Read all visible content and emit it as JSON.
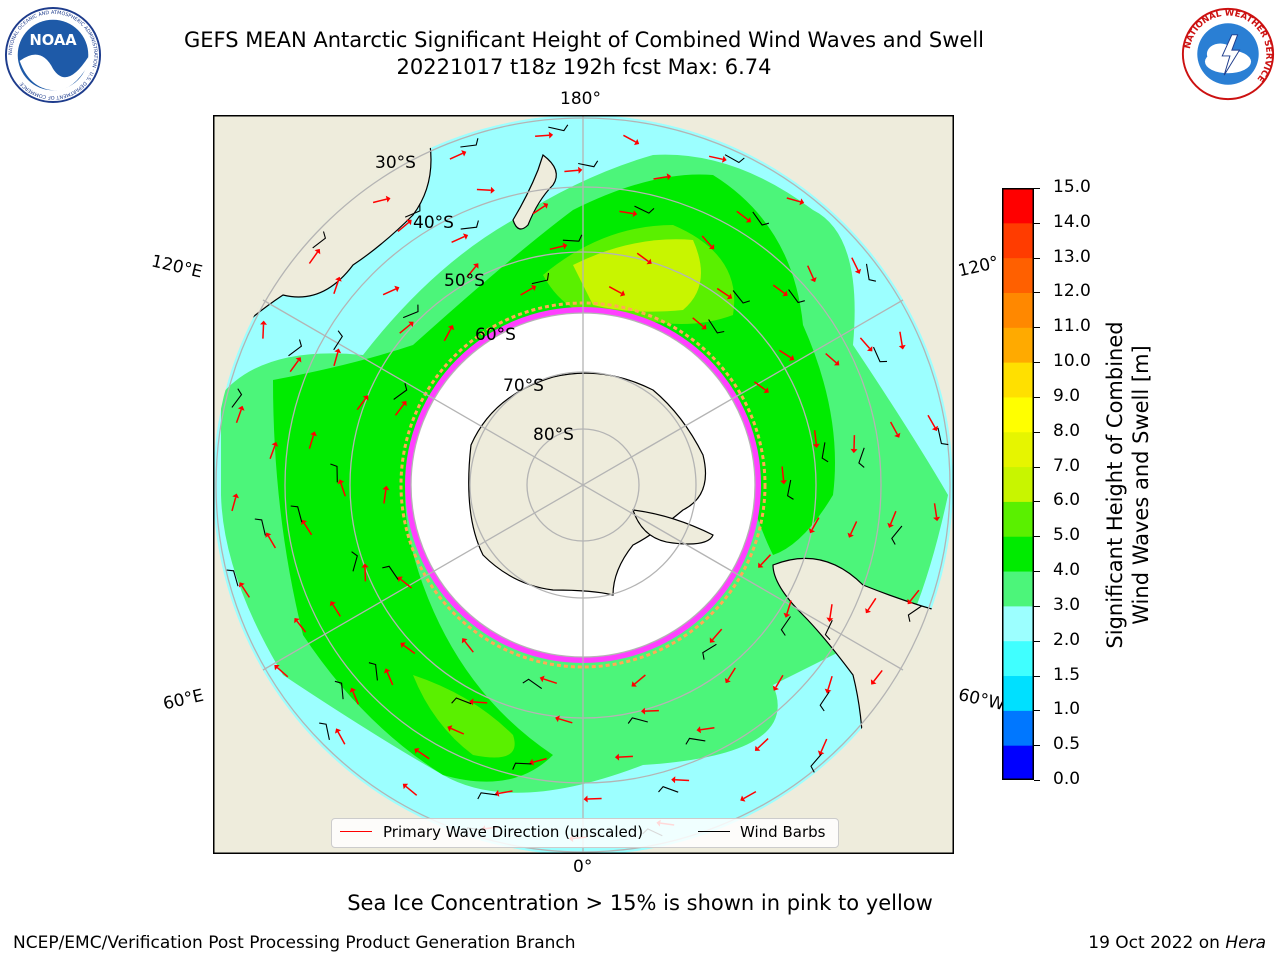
{
  "header": {
    "title_line1": "GEFS MEAN Antarctic Significant Height of Combined Wind Waves and Swell",
    "title_line2": "20221017 t18z 192h fcst   Max: 6.74",
    "noaa_logo_text": "NOAA",
    "noaa_ring_text": "NATIONAL OCEANIC AND ATMOSPHERIC ADMINISTRATION · U.S. DEPARTMENT OF COMMERCE",
    "nws_ring_text": "NATIONAL WEATHER SERVICE"
  },
  "map": {
    "projection": "south-polar-stereographic",
    "longitude_labels": {
      "top": "180°",
      "bottom": "0°",
      "upper_left": "120°E",
      "lower_left": "60°E",
      "upper_right": "120°",
      "lower_right": "60°W"
    },
    "latitude_labels": [
      "30°S",
      "40°S",
      "50°S",
      "60°S",
      "70°S",
      "80°S"
    ],
    "colors": {
      "land": "#eeecdc",
      "ocean_bg": "#9cffff",
      "wave_3_4": "#4cf57a",
      "wave_4_5": "#00eb00",
      "wave_5_6": "#5af000",
      "wave_6_7": "#c8f500",
      "sea_ice": "#ff40ff",
      "sea_ice_edge": "#ffaa55",
      "wave_arrow": "#ff0000",
      "wind_barb": "#000000",
      "graticule": "#b4b4b4"
    }
  },
  "legend": {
    "wave_direction_label": "Primary Wave Direction (unscaled)",
    "wind_barbs_label": "Wind Barbs"
  },
  "colorbar": {
    "title_line1": "Significant Height of Combined",
    "title_line2": "Wind Waves and Swell [m]",
    "ticks": [
      "0.0",
      "0.5",
      "1.0",
      "1.5",
      "2.0",
      "3.0",
      "4.0",
      "5.0",
      "6.0",
      "7.0",
      "8.0",
      "9.0",
      "10.0",
      "11.0",
      "12.0",
      "13.0",
      "14.0",
      "15.0"
    ],
    "colors": [
      "#0000ff",
      "#0077ff",
      "#00e0ff",
      "#40ffff",
      "#9cffff",
      "#4cf57a",
      "#00eb00",
      "#5af000",
      "#c8f500",
      "#e6f500",
      "#ffff00",
      "#ffe000",
      "#ffaa00",
      "#ff8800",
      "#ff6000",
      "#ff3c00",
      "#ff0000"
    ]
  },
  "footer": {
    "note": "Sea Ice Concentration > 15% is shown in pink to yellow",
    "left": "NCEP/EMC/Verification Post Processing Product Generation Branch",
    "right_date": "19 Oct 2022 on",
    "right_machine": "Hera"
  }
}
